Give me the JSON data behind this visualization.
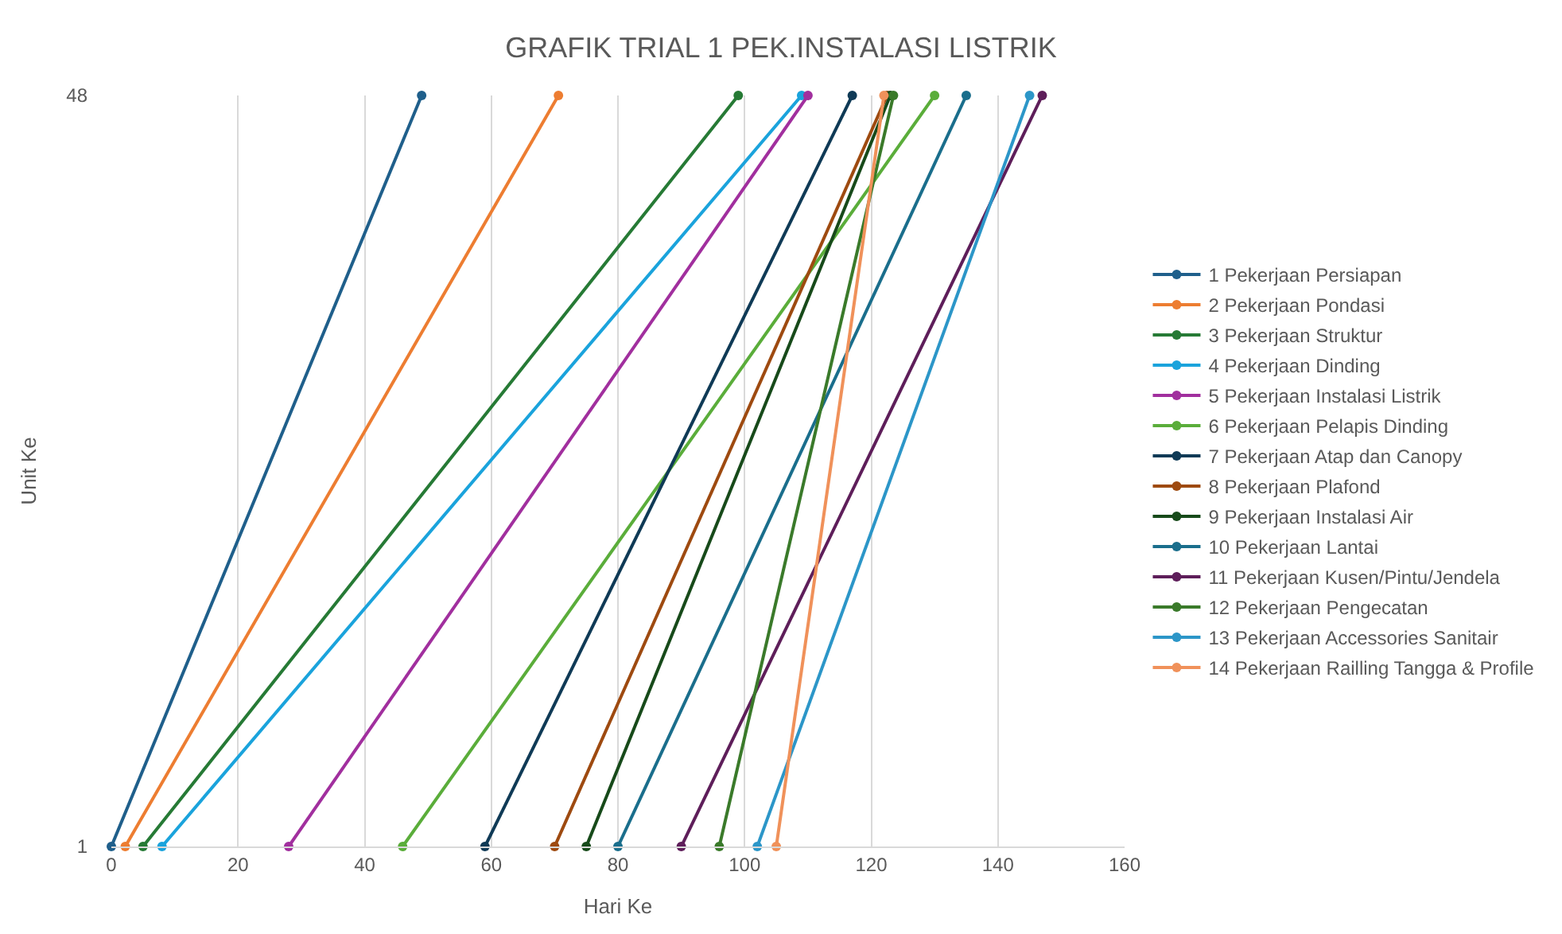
{
  "chart_data": {
    "type": "line",
    "title": "GRAFIK TRIAL 1 PEK.INSTALASI LISTRIK",
    "xlabel": "Hari Ke",
    "ylabel": "Unit Ke",
    "xlim": [
      0,
      160
    ],
    "xticks": [
      0,
      20,
      40,
      60,
      80,
      100,
      120,
      140,
      160
    ],
    "ylim": [
      1,
      48
    ],
    "yticks": [
      1,
      48
    ],
    "grid": "x",
    "legend": "right",
    "marker": "circle",
    "line_style": "solid",
    "series": [
      {
        "name": "1 Pekerjaan Persiapan",
        "color": "#1f5f8b",
        "x": [
          0,
          49
        ],
        "values": [
          1,
          48
        ]
      },
      {
        "name": "2 Pekerjaan Pondasi",
        "color": "#ed7d31",
        "x": [
          2.2,
          70.6
        ],
        "values": [
          1,
          48
        ]
      },
      {
        "name": "3 Pekerjaan Struktur",
        "color": "#267a35",
        "x": [
          5,
          99
        ],
        "values": [
          1,
          48
        ]
      },
      {
        "name": "4 Pekerjaan Dinding",
        "color": "#1aa3dc",
        "x": [
          8,
          109
        ],
        "values": [
          1,
          48
        ]
      },
      {
        "name": "5 Pekerjaan Instalasi Listrik",
        "color": "#a12f9e",
        "x": [
          28,
          110
        ],
        "values": [
          1,
          48
        ]
      },
      {
        "name": "6 Pekerjaan Pelapis Dinding",
        "color": "#5aad3a",
        "x": [
          46,
          130
        ],
        "values": [
          1,
          48
        ]
      },
      {
        "name": "7 Pekerjaan Atap dan Canopy",
        "color": "#0f3a56",
        "x": [
          59,
          117
        ],
        "values": [
          1,
          48
        ]
      },
      {
        "name": "8 Pekerjaan Plafond",
        "color": "#9e4a10",
        "x": [
          70,
          122.5
        ],
        "values": [
          1,
          48
        ]
      },
      {
        "name": "9 Pekerjaan Instalasi Air",
        "color": "#174a1a",
        "x": [
          75,
          123
        ],
        "values": [
          1,
          48
        ]
      },
      {
        "name": "10 Pekerjaan Lantai",
        "color": "#1a6e8c",
        "x": [
          80,
          135
        ],
        "values": [
          1,
          48
        ]
      },
      {
        "name": "11 Pekerjaan Kusen/Pintu/Jendela",
        "color": "#5e1e5a",
        "x": [
          90,
          147
        ],
        "values": [
          1,
          48
        ]
      },
      {
        "name": "12 Pekerjaan Pengecatan",
        "color": "#3a7a2a",
        "x": [
          96,
          123.5
        ],
        "values": [
          1,
          48
        ]
      },
      {
        "name": "13 Pekerjaan Accessories Sanitair",
        "color": "#2c96c8",
        "x": [
          102,
          145
        ],
        "values": [
          1,
          48
        ]
      },
      {
        "name": "14 Pekerjaan Railling Tangga & Profile",
        "color": "#f0915a",
        "x": [
          105,
          122
        ],
        "values": [
          1,
          48
        ]
      }
    ]
  }
}
